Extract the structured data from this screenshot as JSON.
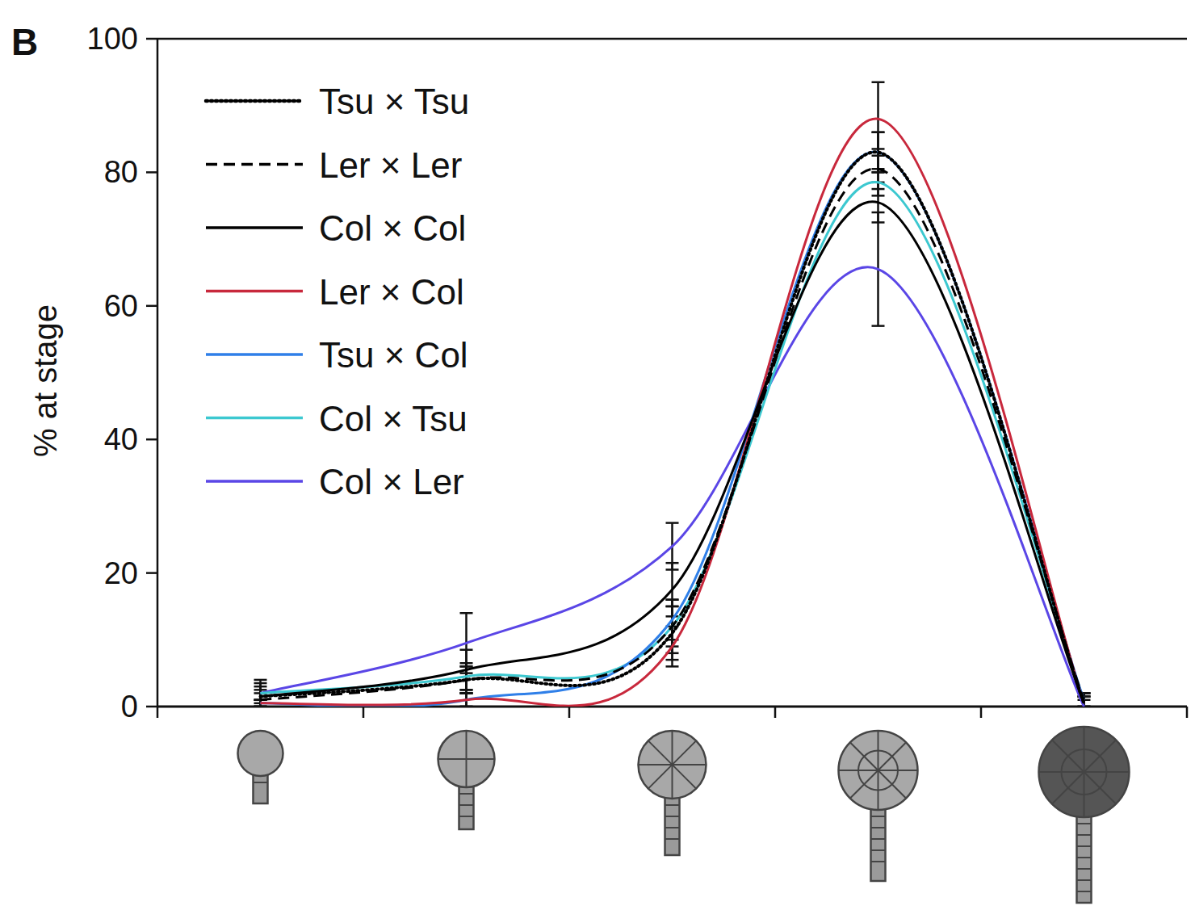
{
  "chart_data": {
    "type": "line",
    "panel": "B",
    "y_label": "% at stage",
    "categories": [
      null,
      null,
      null,
      null,
      null
    ],
    "ylim": [
      0,
      100
    ],
    "yticks": [
      0,
      20,
      40,
      60,
      80,
      100
    ],
    "legend": "top-left",
    "series": [
      {
        "name": "Tsu × Tsu",
        "color": "#000000",
        "line_style": "dotted",
        "values": [
          1.5,
          4,
          11,
          83,
          0.5
        ],
        "errors": [
          1,
          2,
          4,
          3,
          1
        ]
      },
      {
        "name": "Ler × Ler",
        "color": "#000000",
        "line_style": "dashed",
        "values": [
          1,
          4,
          12,
          80.5,
          1
        ],
        "errors": [
          1,
          2,
          4,
          3,
          1
        ]
      },
      {
        "name": "Col × Col",
        "color": "#000000",
        "line_style": "solid",
        "values": [
          1.5,
          5.5,
          17.5,
          75.5,
          0.5
        ],
        "errors": [
          2,
          3,
          4,
          3,
          1
        ]
      },
      {
        "name": "Ler × Col",
        "color": "#c8283c",
        "line_style": "solid",
        "values": [
          0.5,
          1,
          9,
          88,
          0.5
        ],
        "errors": [
          0.5,
          1,
          3,
          5.5,
          1
        ]
      },
      {
        "name": "Tsu × Col",
        "color": "#2f7fe8",
        "line_style": "solid",
        "values": [
          0.5,
          1,
          13,
          83,
          1
        ],
        "errors": [
          0.5,
          1,
          3,
          3,
          1
        ]
      },
      {
        "name": "Col × Tsu",
        "color": "#3cc8d0",
        "line_style": "solid",
        "values": [
          2,
          4.5,
          12,
          78.5,
          1
        ],
        "errors": [
          1,
          2,
          3,
          2,
          1
        ]
      },
      {
        "name": "Col × Ler",
        "color": "#5a46e6",
        "line_style": "solid",
        "values": [
          2,
          9.5,
          24,
          65.5,
          0
        ],
        "errors": [
          2,
          4.5,
          3.5,
          8.5,
          1
        ]
      }
    ]
  }
}
